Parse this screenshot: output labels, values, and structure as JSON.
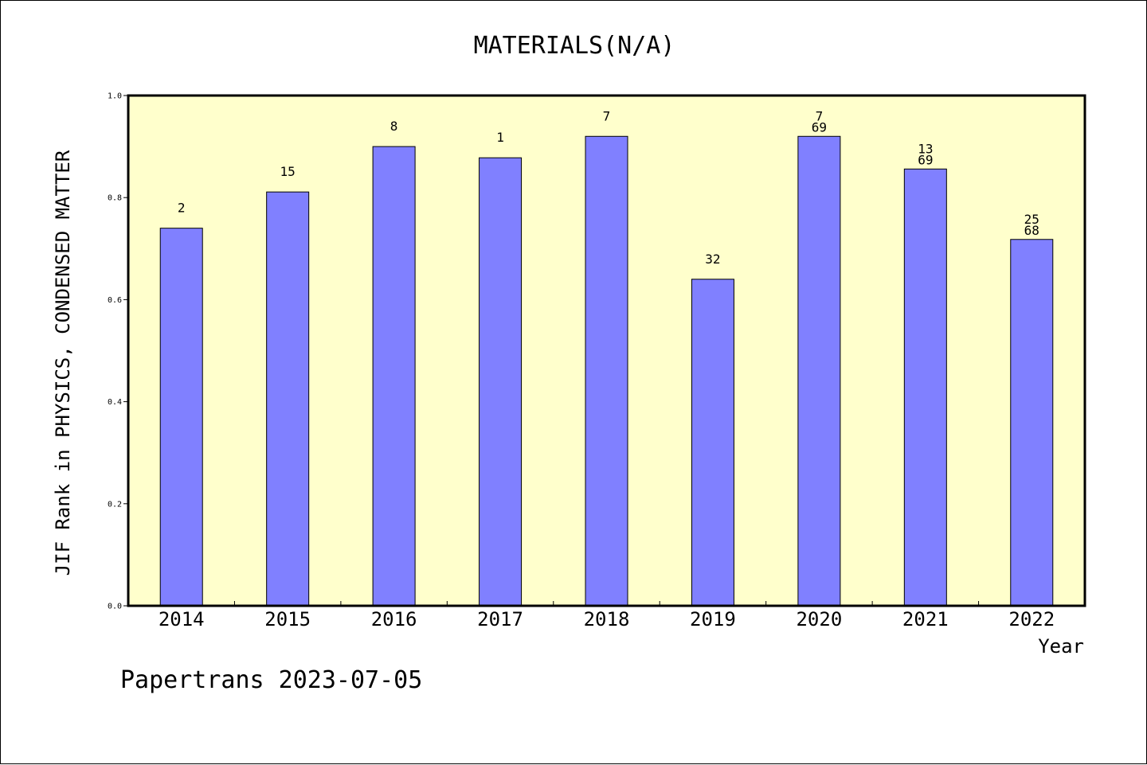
{
  "chart_data": {
    "type": "bar",
    "title": "MATERIALS(N/A)",
    "xlabel": "Year",
    "ylabel": "JIF Rank in PHYSICS, CONDENSED MATTER",
    "categories": [
      "2014",
      "2015",
      "2016",
      "2017",
      "2018",
      "2019",
      "2020",
      "2021",
      "2022"
    ],
    "values": [
      0.74,
      0.811,
      0.9,
      0.878,
      0.92,
      0.64,
      0.92,
      0.856,
      0.718
    ],
    "bar_labels": [
      [
        "2"
      ],
      [
        "15"
      ],
      [
        "8"
      ],
      [
        "1"
      ],
      [
        "7"
      ],
      [
        "32"
      ],
      [
        "7",
        "69"
      ],
      [
        "13",
        "69"
      ],
      [
        "25",
        "68"
      ]
    ],
    "ylim": [
      0,
      1
    ],
    "yticks": [
      "0.0",
      "0.2",
      "0.4",
      "0.6",
      "0.8",
      "1.0"
    ],
    "grid": false,
    "legend": "none",
    "colors": {
      "plot_background": "#ffffcc",
      "bar_fill": "#8080ff",
      "bar_stroke": "#000000"
    }
  },
  "footer": "Papertrans 2023-07-05"
}
